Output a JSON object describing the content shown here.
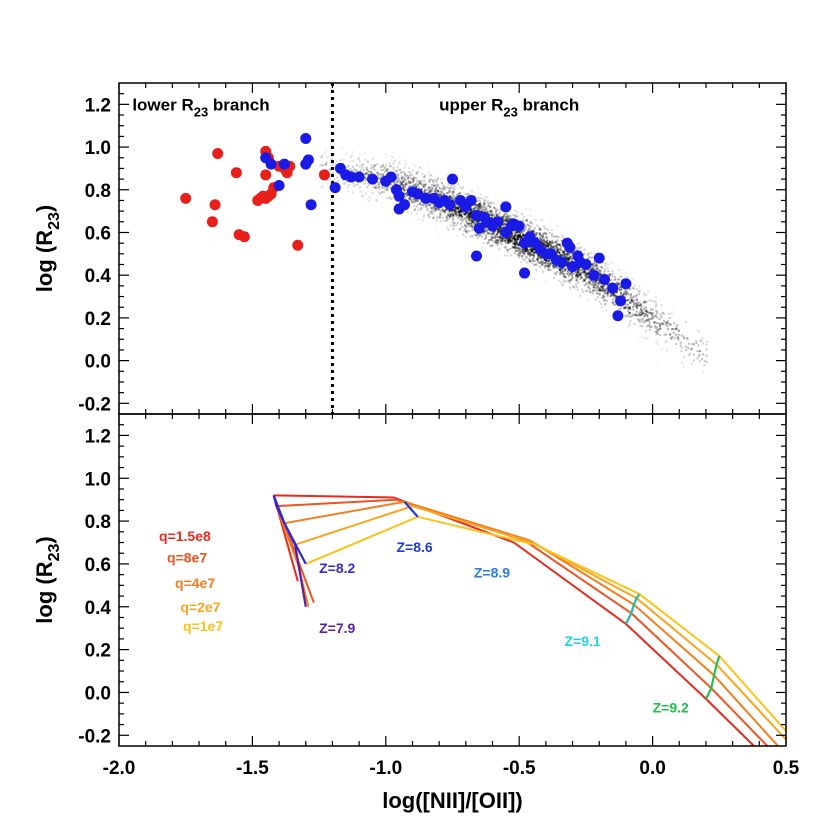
{
  "chart_data": [
    {
      "type": "scatter",
      "panel": "top",
      "xlabel": "log([NII]/[OII])",
      "ylabel_main": "log (R",
      "ylabel_sub": "23",
      "ylabel_end": ")",
      "xlim": [
        -2.0,
        0.5
      ],
      "ylim": [
        -0.25,
        1.3
      ],
      "x_ticks": [
        "-2.0",
        "-1.5",
        "-1.0",
        "-0.5",
        "0.0",
        "0.5"
      ],
      "y_ticks": [
        "-0.2",
        "0.0",
        "0.2",
        "0.4",
        "0.6",
        "0.8",
        "1.0",
        "1.2"
      ],
      "divider_x": -1.2,
      "annotations": [
        {
          "name": "lower-branch-label",
          "pre": "lower R",
          "sub": "23",
          "post": " branch",
          "x": -1.95,
          "y": 1.2
        },
        {
          "name": "upper-branch-label",
          "pre": "upper R",
          "sub": "23",
          "post": " branch",
          "x": -0.8,
          "y": 1.2
        }
      ],
      "colors": {
        "lower": "#e8201c",
        "upper": "#1a1ae6",
        "cloud": "#000000"
      },
      "series": [
        {
          "name": "",
          "color": "#e8201c",
          "points": [
            [
              -1.75,
              0.76
            ],
            [
              -1.63,
              0.97
            ],
            [
              -1.64,
              0.73
            ],
            [
              -1.65,
              0.65
            ],
            [
              -1.55,
              0.59
            ],
            [
              -1.56,
              0.88
            ],
            [
              -1.53,
              0.58
            ],
            [
              -1.48,
              0.75
            ],
            [
              -1.47,
              0.76
            ],
            [
              -1.46,
              0.77
            ],
            [
              -1.45,
              0.76
            ],
            [
              -1.44,
              0.77
            ],
            [
              -1.43,
              0.78
            ],
            [
              -1.45,
              0.98
            ],
            [
              -1.44,
              0.95
            ],
            [
              -1.45,
              0.87
            ],
            [
              -1.4,
              0.91
            ],
            [
              -1.38,
              0.9
            ],
            [
              -1.37,
              0.88
            ],
            [
              -1.36,
              0.91
            ],
            [
              -1.33,
              0.54
            ],
            [
              -1.23,
              0.87
            ],
            [
              -1.42,
              0.81
            ]
          ]
        },
        {
          "name": "",
          "color": "#1a1ae6",
          "points": [
            [
              -1.45,
              0.95
            ],
            [
              -1.43,
              0.92
            ],
            [
              -1.38,
              0.92
            ],
            [
              -1.4,
              0.82
            ],
            [
              -1.3,
              1.04
            ],
            [
              -1.29,
              0.94
            ],
            [
              -1.3,
              0.92
            ],
            [
              -1.28,
              0.73
            ],
            [
              -1.17,
              0.9
            ],
            [
              -1.19,
              0.81
            ],
            [
              -1.15,
              0.87
            ],
            [
              -1.13,
              0.86
            ],
            [
              -1.1,
              0.86
            ],
            [
              -1.05,
              0.85
            ],
            [
              -1.0,
              0.84
            ],
            [
              -0.98,
              0.86
            ],
            [
              -0.96,
              0.8
            ],
            [
              -0.95,
              0.77
            ],
            [
              -0.93,
              0.73
            ],
            [
              -0.95,
              0.71
            ],
            [
              -0.9,
              0.79
            ],
            [
              -0.88,
              0.78
            ],
            [
              -0.85,
              0.76
            ],
            [
              -0.82,
              0.76
            ],
            [
              -0.8,
              0.74
            ],
            [
              -0.78,
              0.75
            ],
            [
              -0.76,
              0.73
            ],
            [
              -0.75,
              0.85
            ],
            [
              -0.72,
              0.75
            ],
            [
              -0.7,
              0.72
            ],
            [
              -0.68,
              0.75
            ],
            [
              -0.66,
              0.68
            ],
            [
              -0.65,
              0.62
            ],
            [
              -0.63,
              0.67
            ],
            [
              -0.62,
              0.65
            ],
            [
              -0.6,
              0.64
            ],
            [
              -0.58,
              0.65
            ],
            [
              -0.55,
              0.6
            ],
            [
              -0.55,
              0.72
            ],
            [
              -0.52,
              0.64
            ],
            [
              -0.5,
              0.63
            ],
            [
              -0.48,
              0.55
            ],
            [
              -0.46,
              0.58
            ],
            [
              -0.44,
              0.55
            ],
            [
              -0.42,
              0.52
            ],
            [
              -0.4,
              0.5
            ],
            [
              -0.66,
              0.49
            ],
            [
              -0.6,
              0.63
            ],
            [
              -0.53,
              0.63
            ],
            [
              -0.48,
              0.41
            ],
            [
              -0.38,
              0.5
            ],
            [
              -0.36,
              0.47
            ],
            [
              -0.34,
              0.46
            ],
            [
              -0.32,
              0.55
            ],
            [
              -0.31,
              0.53
            ],
            [
              -0.3,
              0.44
            ],
            [
              -0.28,
              0.49
            ],
            [
              -0.27,
              0.46
            ],
            [
              -0.25,
              0.45
            ],
            [
              -0.22,
              0.4
            ],
            [
              -0.2,
              0.48
            ],
            [
              -0.18,
              0.38
            ],
            [
              -0.15,
              0.34
            ],
            [
              -0.12,
              0.28
            ],
            [
              -0.13,
              0.21
            ],
            [
              -0.1,
              0.36
            ]
          ]
        }
      ],
      "cloud_curve": [
        [
          -1.25,
          0.9
        ],
        [
          -1.0,
          0.85
        ],
        [
          -0.75,
          0.73
        ],
        [
          -0.5,
          0.58
        ],
        [
          -0.25,
          0.42
        ],
        [
          0.0,
          0.2
        ],
        [
          0.2,
          0.02
        ]
      ]
    },
    {
      "type": "line",
      "panel": "bottom",
      "xlabel": "log([NII]/[OII])",
      "ylabel_main": "log (R",
      "ylabel_sub": "23",
      "ylabel_end": ")",
      "xlim": [
        -2.0,
        0.5
      ],
      "ylim": [
        -0.25,
        1.3
      ],
      "x_ticks": [
        "-2.0",
        "-1.5",
        "-1.0",
        "-0.5",
        "0.0",
        "0.5"
      ],
      "y_ticks": [
        "-0.2",
        "0.0",
        "0.2",
        "0.4",
        "0.6",
        "0.8",
        "1.0",
        "1.2"
      ],
      "q_series": [
        {
          "label": "q=1.5e8",
          "color": "#e8291c",
          "points": [
            [
              -1.42,
              0.92
            ],
            [
              -0.97,
              0.91
            ],
            [
              -0.52,
              0.7
            ],
            [
              -0.1,
              0.32
            ],
            [
              0.2,
              -0.03
            ],
            [
              0.38,
              -0.25
            ]
          ]
        },
        {
          "label": "q=8e7",
          "color": "#ee5320",
          "points": [
            [
              -1.41,
              0.87
            ],
            [
              -0.96,
              0.9
            ],
            [
              -0.48,
              0.71
            ],
            [
              -0.08,
              0.37
            ],
            [
              0.22,
              0.02
            ],
            [
              0.43,
              -0.25
            ]
          ]
        },
        {
          "label": "q=4e7",
          "color": "#f37d1f",
          "points": [
            [
              -1.38,
              0.79
            ],
            [
              -0.93,
              0.89
            ],
            [
              -0.46,
              0.71
            ],
            [
              -0.07,
              0.41
            ],
            [
              0.23,
              0.08
            ],
            [
              0.47,
              -0.25
            ]
          ]
        },
        {
          "label": "q=2e7",
          "color": "#f8a41e",
          "points": [
            [
              -1.34,
              0.69
            ],
            [
              -0.9,
              0.87
            ],
            [
              -0.45,
              0.7
            ],
            [
              -0.06,
              0.44
            ],
            [
              0.24,
              0.13
            ],
            [
              0.5,
              -0.22
            ]
          ]
        },
        {
          "label": "q=1e7",
          "color": "#fcc319",
          "points": [
            [
              -1.3,
              0.6
            ],
            [
              -0.88,
              0.82
            ],
            [
              -0.44,
              0.69
            ],
            [
              -0.05,
              0.46
            ],
            [
              0.25,
              0.17
            ],
            [
              0.5,
              -0.18
            ]
          ]
        }
      ],
      "q_labels": [
        {
          "text": "q=1.5e8",
          "color": "#e8291c",
          "x": -1.85,
          "y": 0.73
        },
        {
          "text": "q=8e7",
          "color": "#ee5320",
          "x": -1.82,
          "y": 0.63
        },
        {
          "text": "q=4e7",
          "color": "#f37d1f",
          "x": -1.79,
          "y": 0.51
        },
        {
          "text": "q=2e7",
          "color": "#f8a41e",
          "x": -1.77,
          "y": 0.4
        },
        {
          "text": "q=1e7",
          "color": "#fcc319",
          "x": -1.76,
          "y": 0.31
        }
      ],
      "extra_lines": [
        {
          "color": "#e8291c",
          "points": [
            [
              -1.42,
              0.92
            ],
            [
              -1.33,
              0.52
            ]
          ]
        },
        {
          "color": "#ee5320",
          "points": [
            [
              -1.42,
              0.92
            ],
            [
              -1.27,
              0.42
            ]
          ]
        },
        {
          "color": "#f37d1f",
          "points": [
            [
              -1.41,
              0.87
            ],
            [
              -1.33,
              0.6
            ],
            [
              -1.29,
              0.4
            ]
          ]
        }
      ],
      "z_series": [
        {
          "label": "Z=7.9",
          "color": "#5a1fa8",
          "points": [
            [
              -1.42,
              0.92
            ],
            [
              -1.41,
              0.87
            ],
            [
              -1.38,
              0.79
            ],
            [
              -1.34,
              0.69
            ],
            [
              -1.3,
              0.4
            ]
          ]
        },
        {
          "label": "Z=8.2",
          "color": "#2b2ad6",
          "points": [
            [
              -1.42,
              0.92
            ],
            [
              -1.38,
              0.79
            ],
            [
              -1.3,
              0.6
            ]
          ]
        },
        {
          "label": "Z=8.6",
          "color": "#1a3ad9",
          "points": [
            [
              -0.93,
              0.89
            ],
            [
              -0.88,
              0.82
            ]
          ]
        },
        {
          "label": "Z=9.1",
          "color": "#20b8b0",
          "points": [
            [
              -0.1,
              0.32
            ],
            [
              -0.08,
              0.37
            ],
            [
              -0.07,
              0.41
            ],
            [
              -0.06,
              0.44
            ],
            [
              -0.05,
              0.46
            ]
          ]
        },
        {
          "label": "Z=9.2",
          "color": "#21c04a",
          "points": [
            [
              0.2,
              -0.03
            ],
            [
              0.22,
              0.02
            ],
            [
              0.23,
              0.08
            ],
            [
              0.24,
              0.13
            ],
            [
              0.25,
              0.17
            ]
          ]
        }
      ],
      "z_labels": [
        {
          "text": "Z=7.9",
          "color": "#5a1fa8",
          "x": -1.25,
          "y": 0.3
        },
        {
          "text": "Z=8.2",
          "color": "#3a2ad6",
          "x": -1.25,
          "y": 0.58
        },
        {
          "text": "Z=8.6",
          "color": "#1a3ad9",
          "x": -0.96,
          "y": 0.68
        },
        {
          "text": "Z=8.9",
          "color": "#2a7be8",
          "x": -0.67,
          "y": 0.56
        },
        {
          "text": "Z=9.1",
          "color": "#22d0e6",
          "x": -0.33,
          "y": 0.24
        },
        {
          "text": "Z=9.2",
          "color": "#21c04a",
          "x": 0.0,
          "y": -0.07
        }
      ]
    }
  ]
}
